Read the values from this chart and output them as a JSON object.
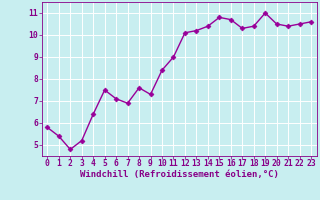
{
  "x": [
    0,
    1,
    2,
    3,
    4,
    5,
    6,
    7,
    8,
    9,
    10,
    11,
    12,
    13,
    14,
    15,
    16,
    17,
    18,
    19,
    20,
    21,
    22,
    23
  ],
  "y": [
    5.8,
    5.4,
    4.8,
    5.2,
    6.4,
    7.5,
    7.1,
    6.9,
    7.6,
    7.3,
    8.4,
    9.0,
    10.1,
    10.2,
    10.4,
    10.8,
    10.7,
    10.3,
    10.4,
    11.0,
    10.5,
    10.4,
    10.5,
    10.6
  ],
  "xlabel": "Windchill (Refroidissement éolien,°C)",
  "line_color": "#990099",
  "marker": "D",
  "marker_size": 2.5,
  "bg_color": "#c8eef0",
  "grid_color": "#ffffff",
  "ylim": [
    4.5,
    11.5
  ],
  "xlim": [
    -0.5,
    23.5
  ],
  "yticks": [
    5,
    6,
    7,
    8,
    9,
    10,
    11
  ],
  "xticks": [
    0,
    1,
    2,
    3,
    4,
    5,
    6,
    7,
    8,
    9,
    10,
    11,
    12,
    13,
    14,
    15,
    16,
    17,
    18,
    19,
    20,
    21,
    22,
    23
  ],
  "tick_color": "#880088",
  "label_color": "#880088",
  "xlabel_fontsize": 6.5,
  "tick_fontsize": 5.8,
  "linewidth": 1.0
}
